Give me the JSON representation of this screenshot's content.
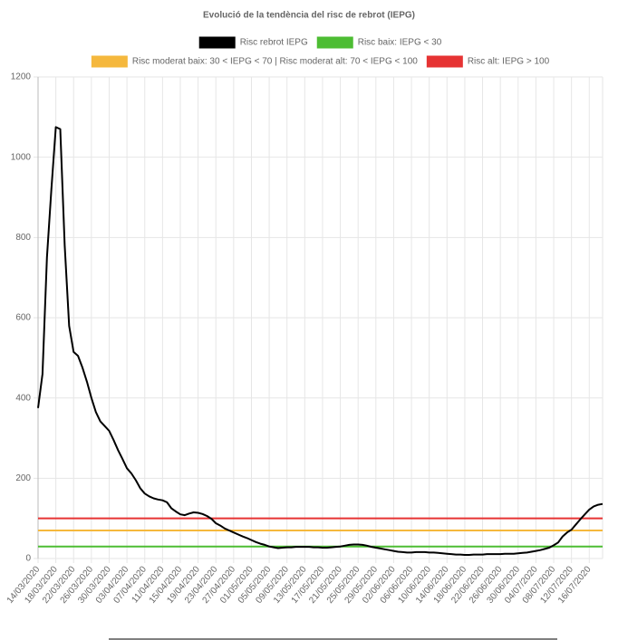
{
  "chart_data": {
    "type": "line",
    "title": "Evolució de la tendència del risc de rebrot (IEPG)",
    "categories": [
      "14/03/2020",
      null,
      null,
      null,
      "18/03/2020",
      null,
      null,
      null,
      "22/03/2020",
      null,
      null,
      null,
      "26/03/2020",
      null,
      null,
      null,
      "30/03/2020",
      null,
      null,
      null,
      "03/04/2020",
      null,
      null,
      null,
      "07/04/2020",
      null,
      null,
      null,
      "11/04/2020",
      null,
      null,
      null,
      "15/04/2020",
      null,
      null,
      null,
      "19/04/2020",
      null,
      null,
      null,
      "23/04/2020",
      null,
      null,
      null,
      "27/04/2020",
      null,
      null,
      null,
      "01/05/2020",
      null,
      null,
      null,
      "05/05/2020",
      null,
      null,
      null,
      "09/05/2020",
      null,
      null,
      null,
      "13/05/2020",
      null,
      null,
      null,
      "17/05/2020",
      null,
      null,
      null,
      "21/05/2020",
      null,
      null,
      null,
      "25/05/2020",
      null,
      null,
      null,
      "29/05/2020",
      null,
      null,
      null,
      "02/06/2020",
      null,
      null,
      null,
      "06/06/2020",
      null,
      null,
      null,
      "10/06/2020",
      null,
      null,
      null,
      "14/06/2020",
      null,
      null,
      null,
      "18/06/2020",
      null,
      null,
      null,
      "22/06/2020",
      null,
      null,
      null,
      "26/06/2020",
      null,
      null,
      null,
      "30/06/2020",
      null,
      null,
      null,
      "04/07/2020",
      null,
      null,
      null,
      "08/07/2020",
      null,
      null,
      null,
      "12/07/2020",
      null,
      null,
      null,
      "16/07/2020",
      null,
      null,
      null
    ],
    "series": [
      {
        "name": "Risc rebrot IEPG",
        "color": "#000000",
        "values": [
          375,
          460,
          750,
          920,
          1075,
          1070,
          780,
          580,
          515,
          505,
          475,
          440,
          400,
          365,
          342,
          330,
          318,
          295,
          270,
          248,
          225,
          212,
          195,
          175,
          162,
          155,
          150,
          147,
          145,
          140,
          125,
          117,
          110,
          108,
          112,
          115,
          114,
          111,
          106,
          99,
          88,
          82,
          75,
          70,
          65,
          60,
          55,
          51,
          46,
          41,
          37,
          34,
          30,
          28,
          26,
          27,
          28,
          28,
          29,
          29,
          29,
          29,
          28,
          28,
          27,
          27,
          28,
          29,
          30,
          32,
          34,
          35,
          35,
          34,
          32,
          29,
          27,
          25,
          23,
          21,
          19,
          17,
          16,
          15,
          15,
          16,
          16,
          16,
          15,
          15,
          14,
          13,
          12,
          11,
          10,
          10,
          9,
          9,
          10,
          10,
          10,
          11,
          11,
          11,
          11,
          12,
          12,
          12,
          13,
          14,
          15,
          17,
          19,
          21,
          24,
          27,
          33,
          40,
          55,
          65,
          72,
          85,
          98,
          110,
          122,
          130,
          134,
          136
        ]
      }
    ],
    "reference_lines": [
      {
        "name": "Risc baix: IEPG < 30",
        "color": "#4dbd33",
        "value": 30
      },
      {
        "name": "Risc moderat baix: 30 < IEPG < 70 | Risc moderat alt: 70 < IEPG < 100",
        "color": "#f5b83d",
        "value": 70
      },
      {
        "name": "Risc alt: IEPG > 100",
        "color": "#e63333",
        "value": 100
      }
    ],
    "ylim": [
      0,
      1200
    ],
    "yticks": [
      0,
      200,
      400,
      600,
      800,
      1000,
      1200
    ],
    "grid": true
  }
}
